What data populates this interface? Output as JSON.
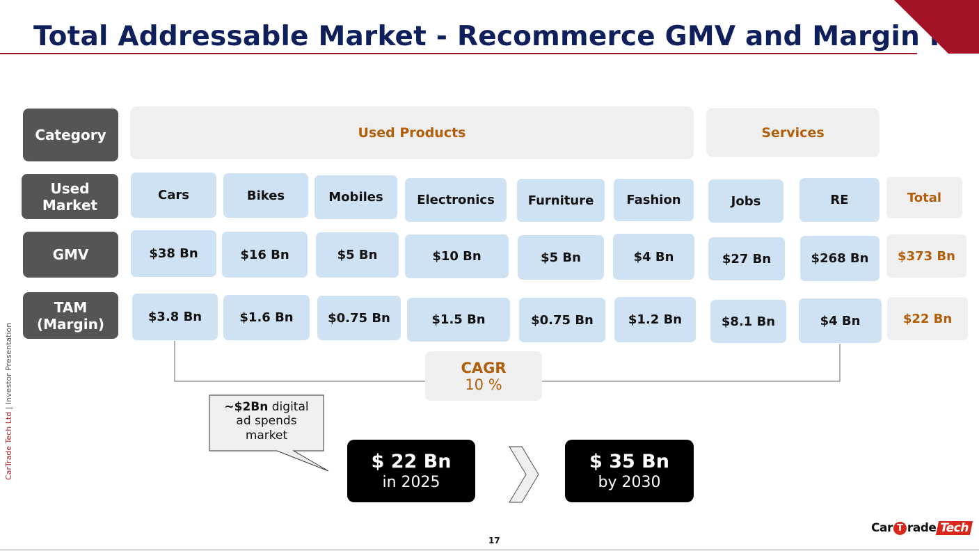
{
  "title": "Total Addressable Market - Recommerce GMV and Margin Pool",
  "side_text": {
    "company": "CarTrade Tech Ltd",
    "separator": " | ",
    "doc": "Investor Presentation"
  },
  "row_headers": {
    "category": "Category",
    "used_market": "Used\nMarket",
    "gmv": "GMV",
    "tam": "TAM\n(Margin)"
  },
  "categories": {
    "used_products": "Used Products",
    "services": "Services"
  },
  "markets": [
    "Cars",
    "Bikes",
    "Mobiles",
    "Electronics",
    "Furniture",
    "Fashion",
    "Jobs",
    "RE"
  ],
  "gmv": [
    "$38 Bn",
    "$16 Bn",
    "$5 Bn",
    "$10 Bn",
    "$5 Bn",
    "$4 Bn",
    "$27 Bn",
    "$268 Bn"
  ],
  "tam": [
    "$3.8 Bn",
    "$1.6 Bn",
    "$0.75 Bn",
    "$1.5 Bn",
    "$0.75 Bn",
    "$1.2 Bn",
    "$8.1 Bn",
    "$4 Bn"
  ],
  "total": {
    "label": "Total",
    "gmv": "$373 Bn",
    "tam": "$22 Bn"
  },
  "cagr": {
    "label": "CAGR",
    "value": "10 %"
  },
  "callout": {
    "bold": "~$2Bn",
    "rest": " digital",
    "line2": "ad spends",
    "line3": "market"
  },
  "current": {
    "amount": "$ 22 Bn",
    "when": "in 2025"
  },
  "future": {
    "amount": "$ 35 Bn",
    "when": "by 2030"
  },
  "page_number": "17",
  "logo": {
    "car": "Car",
    "t": "T",
    "rade": "rade",
    "tech": "Tech"
  },
  "colors": {
    "navy": "#0e1f5b",
    "red": "#a31226",
    "accent": "#b15e0a",
    "cell": "#cfe2f3"
  }
}
